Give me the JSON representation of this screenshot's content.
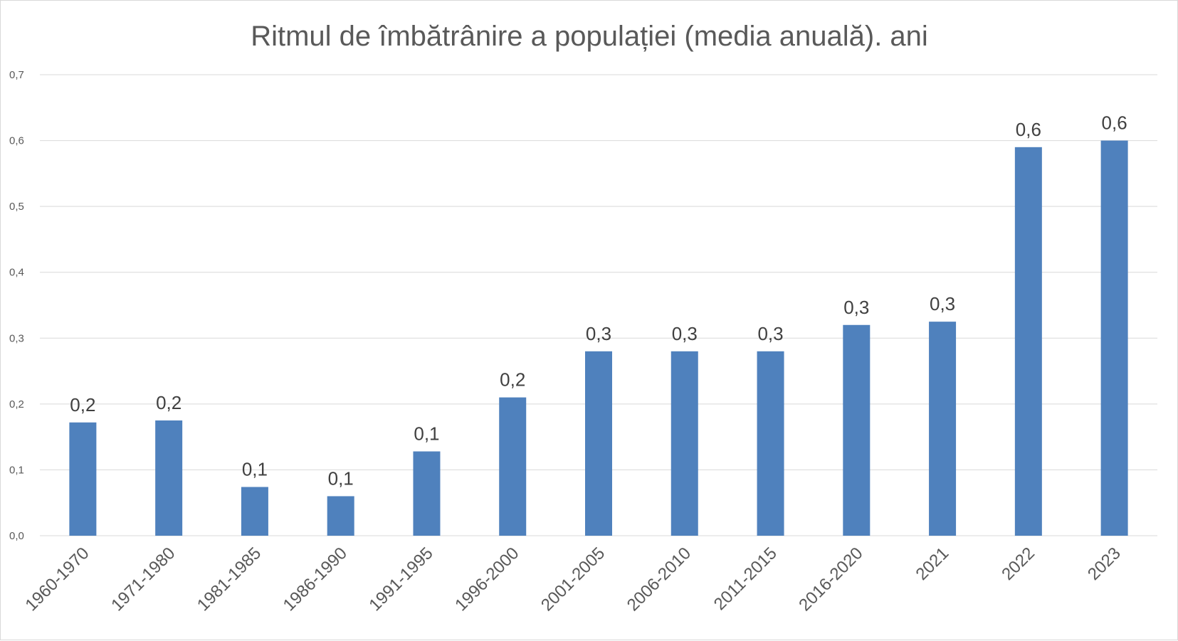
{
  "chart_data": {
    "type": "bar",
    "title": "Ritmul de îmbătrânire a populației (media anuală). ani",
    "xlabel": "",
    "ylabel": "",
    "ylim": [
      0,
      0.7
    ],
    "y_ticks": [
      0.0,
      0.1,
      0.2,
      0.3,
      0.4,
      0.5,
      0.6,
      0.7
    ],
    "y_tick_labels": [
      "0,0",
      "0,1",
      "0,2",
      "0,3",
      "0,4",
      "0,5",
      "0,6",
      "0,7"
    ],
    "grid": true,
    "legend": "none",
    "bar_color": "#4f81bd",
    "categories": [
      "1960-1970",
      "1971-1980",
      "1981-1985",
      "1986-1990",
      "1991-1995",
      "1996-2000",
      "2001-2005",
      "2006-2010",
      "2011-2015",
      "2016-2020",
      "2021",
      "2022",
      "2023"
    ],
    "values": [
      0.172,
      0.175,
      0.074,
      0.06,
      0.128,
      0.21,
      0.28,
      0.28,
      0.28,
      0.32,
      0.325,
      0.59,
      0.6
    ],
    "data_labels": [
      "0,2",
      "0,2",
      "0,1",
      "0,1",
      "0,1",
      "0,2",
      "0,3",
      "0,3",
      "0,3",
      "0,3",
      "0,3",
      "0,6",
      "0,6"
    ]
  }
}
